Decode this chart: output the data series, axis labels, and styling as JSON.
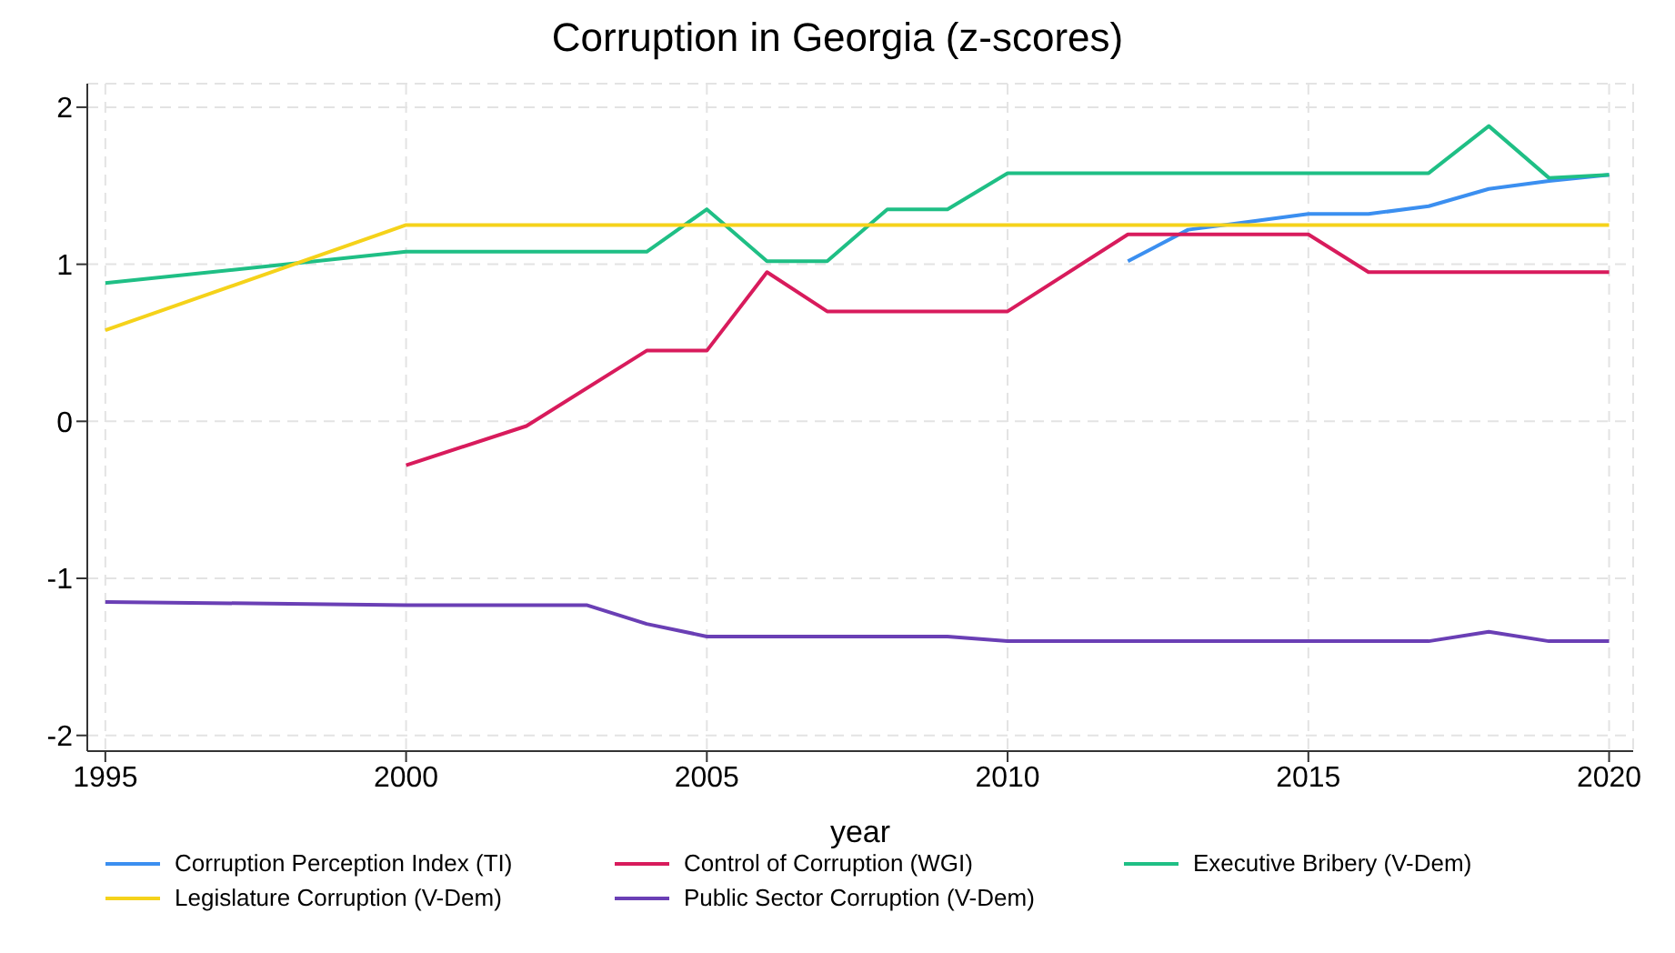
{
  "chart_data": {
    "type": "line",
    "title": "Corruption in Georgia (z-scores)",
    "xlabel": "year",
    "xlim": [
      1994.7,
      2020.4
    ],
    "xticks": [
      1995,
      2000,
      2005,
      2010,
      2015,
      2020
    ],
    "ylim": [
      -2.1,
      2.15
    ],
    "yticks": [
      -2,
      -1,
      0,
      1,
      2
    ],
    "grid": true,
    "legend": "bottom",
    "marker": "none",
    "line_style": "solid",
    "series": [
      {
        "name": "Corruption Perception Index (TI)",
        "color": "#3b8ff0",
        "x": [
          2012,
          2013,
          2014,
          2015,
          2016,
          2017,
          2018,
          2019,
          2020
        ],
        "values": [
          1.02,
          1.22,
          1.27,
          1.32,
          1.32,
          1.37,
          1.48,
          1.53,
          1.57
        ]
      },
      {
        "name": "Control of Corruption (WGI)",
        "color": "#d81b5c",
        "x": [
          2000,
          2002,
          2004,
          2005,
          2006,
          2007,
          2010,
          2012,
          2015,
          2016,
          2020
        ],
        "values": [
          -0.28,
          -0.03,
          0.45,
          0.45,
          0.95,
          0.7,
          0.7,
          1.19,
          1.19,
          0.95,
          0.95
        ]
      },
      {
        "name": "Executive Bribery (V-Dem)",
        "color": "#1fbf85",
        "x": [
          1995,
          2000,
          2004,
          2005,
          2006,
          2007,
          2008,
          2009,
          2010,
          2017,
          2018,
          2019,
          2020
        ],
        "values": [
          0.88,
          1.08,
          1.08,
          1.35,
          1.02,
          1.02,
          1.35,
          1.35,
          1.58,
          1.58,
          1.88,
          1.55,
          1.57
        ]
      },
      {
        "name": "Legislature Corruption (V-Dem)",
        "color": "#f5d21a",
        "x": [
          1995,
          2000,
          2020
        ],
        "values": [
          0.58,
          1.25,
          1.25
        ]
      },
      {
        "name": "Public Sector Corruption (V-Dem)",
        "color": "#6a3fb5",
        "x": [
          1995,
          2000,
          2003,
          2004,
          2005,
          2009,
          2010,
          2017,
          2018,
          2019,
          2020
        ],
        "values": [
          -1.15,
          -1.17,
          -1.17,
          -1.29,
          -1.37,
          -1.37,
          -1.4,
          -1.4,
          -1.34,
          -1.4,
          -1.4
        ]
      }
    ]
  }
}
